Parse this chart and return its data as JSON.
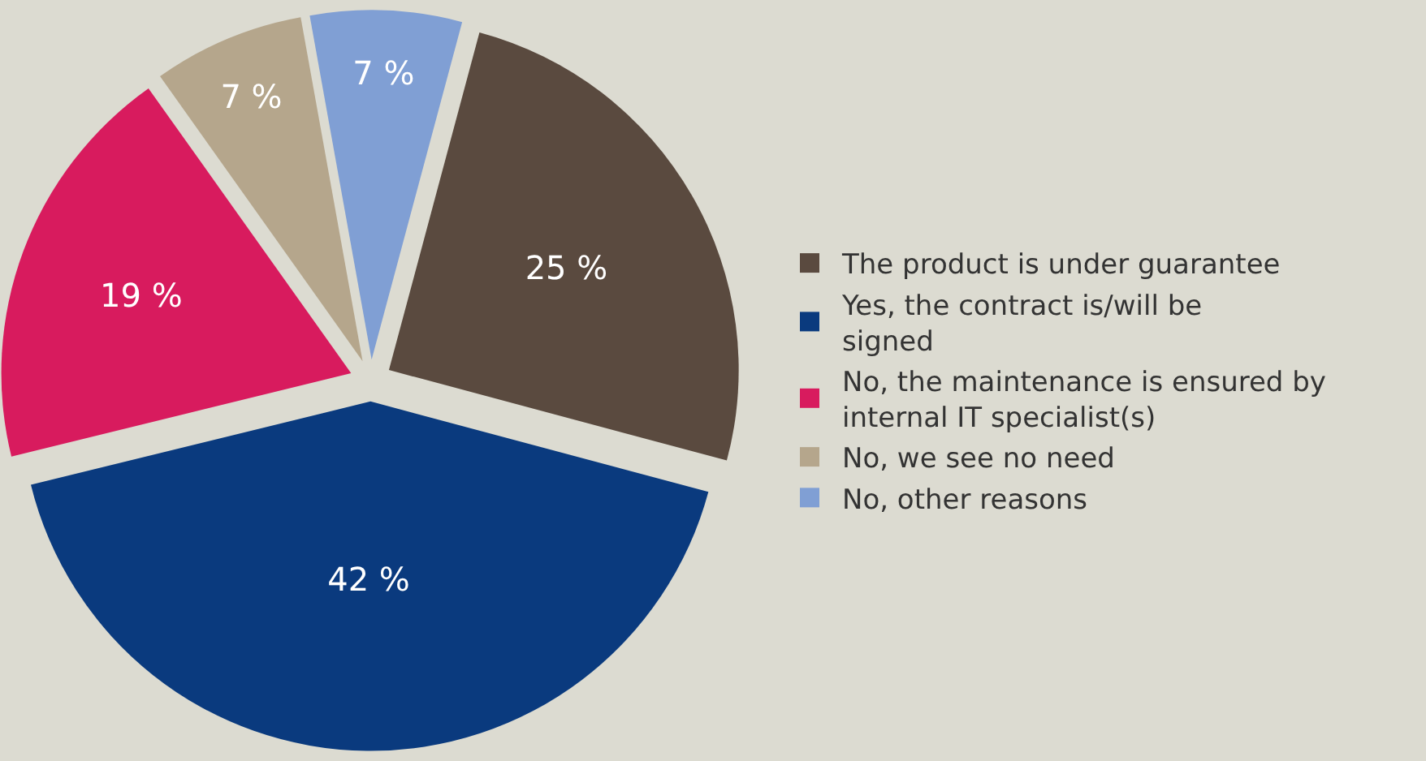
{
  "chart_data": {
    "type": "pie",
    "categories": [
      "The product is under guarantee",
      "Yes, the contract is/will be signed",
      "No, the maintenance is ensured by internal IT specialist(s)",
      "No, we see no need",
      "No, other reasons"
    ],
    "values": [
      25,
      42,
      19,
      7,
      7
    ],
    "colors": [
      "#5a4a3f",
      "#0a3a7e",
      "#d81b5e",
      "#b5a68c",
      "#809fd4"
    ],
    "value_labels": [
      "25 %",
      "42 %",
      "19 %",
      "7 %",
      "7 %"
    ],
    "legend": "right"
  }
}
